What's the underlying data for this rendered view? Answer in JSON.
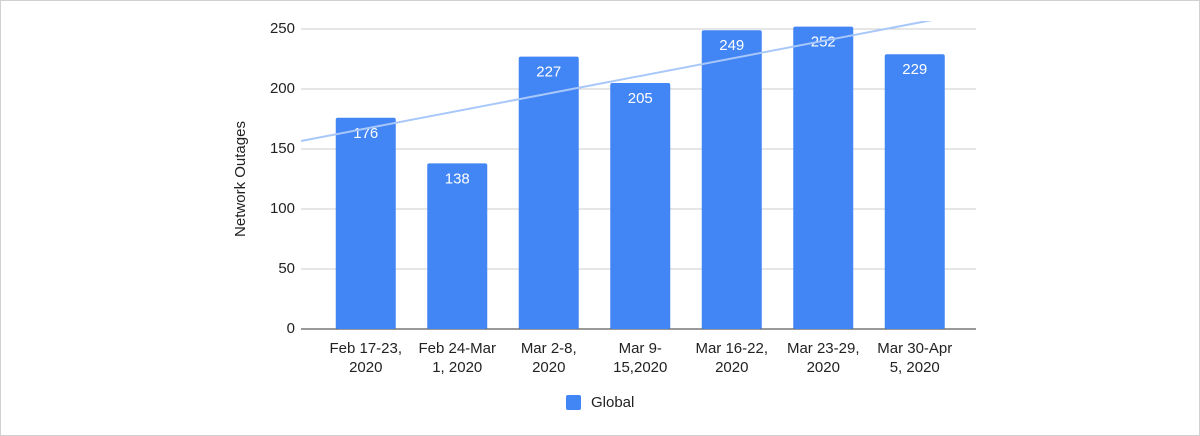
{
  "chart_data": {
    "type": "bar",
    "y_label": "Network Outages",
    "categories": [
      "Feb 17-23, 2020",
      "Feb 24-Mar 1, 2020",
      "Mar 2-8, 2020",
      "Mar 9-15,2020",
      "Mar 16-22, 2020",
      "Mar 23-29, 2020",
      "Mar 30-Apr 5, 2020"
    ],
    "series": [
      {
        "name": "Global",
        "color": "#4285f4",
        "values": [
          176,
          138,
          227,
          205,
          249,
          252,
          229
        ]
      }
    ],
    "ylim": [
      0,
      250
    ],
    "yticks": [
      0,
      50,
      100,
      150,
      200,
      250
    ],
    "grid": true,
    "trendline": true,
    "trendline_color": "#a8c7fa",
    "legend": "bottom"
  }
}
